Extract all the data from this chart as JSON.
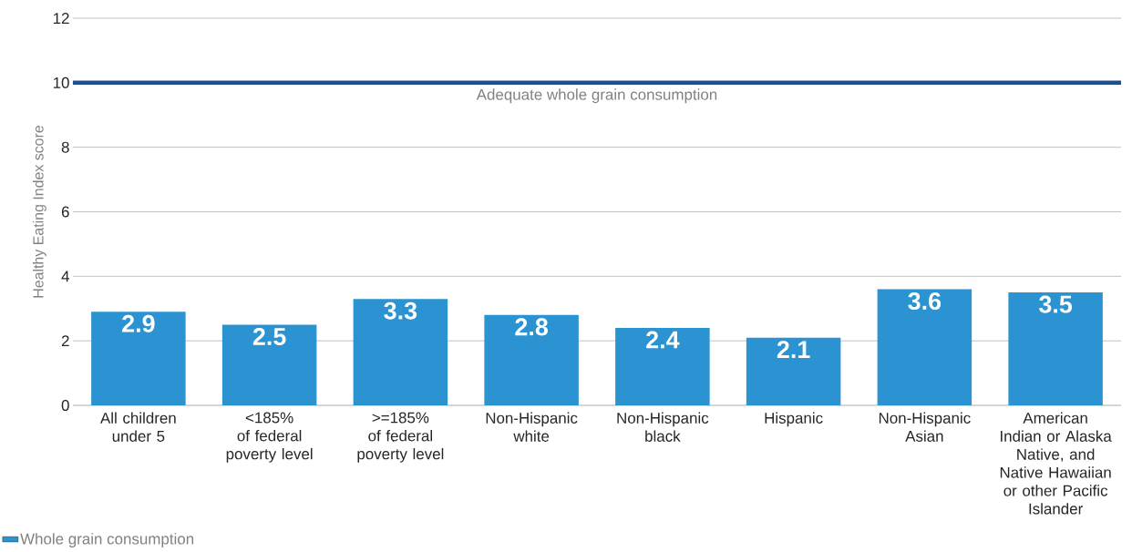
{
  "chart_data": {
    "type": "bar",
    "ylabel": "Healthy Eating Index score",
    "categories": [
      "All children under 5",
      "<185% of federal poverty level",
      ">=185% of federal poverty level",
      "Non-Hispanic white",
      "Non-Hispanic black",
      "Hispanic",
      "Non-Hispanic Asian",
      "American Indian or Alaska Native, and Native Hawaiian or other Pacific Islander"
    ],
    "series": [
      {
        "name": "Whole grain consumption",
        "color": "#2b93d1",
        "values": [
          2.9,
          2.5,
          3.3,
          2.8,
          2.4,
          2.1,
          3.6,
          3.5
        ]
      }
    ],
    "ylim": [
      0,
      12
    ],
    "yticks": [
      0,
      2,
      4,
      6,
      8,
      10,
      12
    ],
    "grid": "y",
    "legend": "bottom left",
    "data_labels": true,
    "ref_lines": [
      {
        "axis": "y",
        "value": 10,
        "label": "Adequate whole grain consumption",
        "color": "#1f4e8c"
      }
    ]
  }
}
